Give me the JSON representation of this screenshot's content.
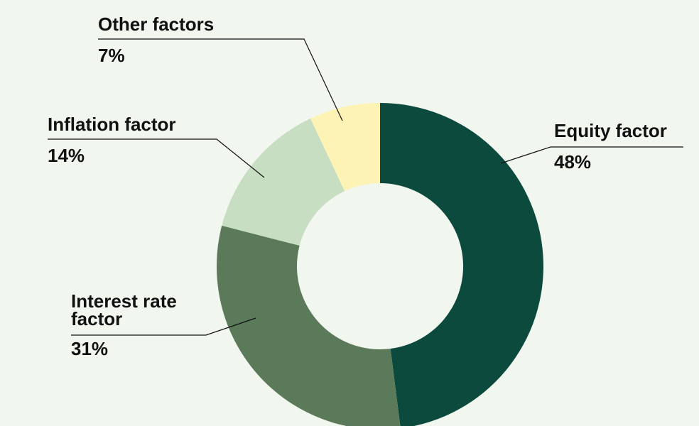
{
  "chart_data": {
    "type": "donut",
    "categories": [
      "Equity factor",
      "Interest rate factor",
      "Inflation factor",
      "Other factors"
    ],
    "values": [
      48,
      31,
      14,
      7
    ],
    "value_labels": [
      "48%",
      "31%",
      "14%",
      "7%"
    ],
    "colors": [
      "#0b4a3c",
      "#5a7a5a",
      "#c8dec2",
      "#fdf3b4"
    ]
  }
}
